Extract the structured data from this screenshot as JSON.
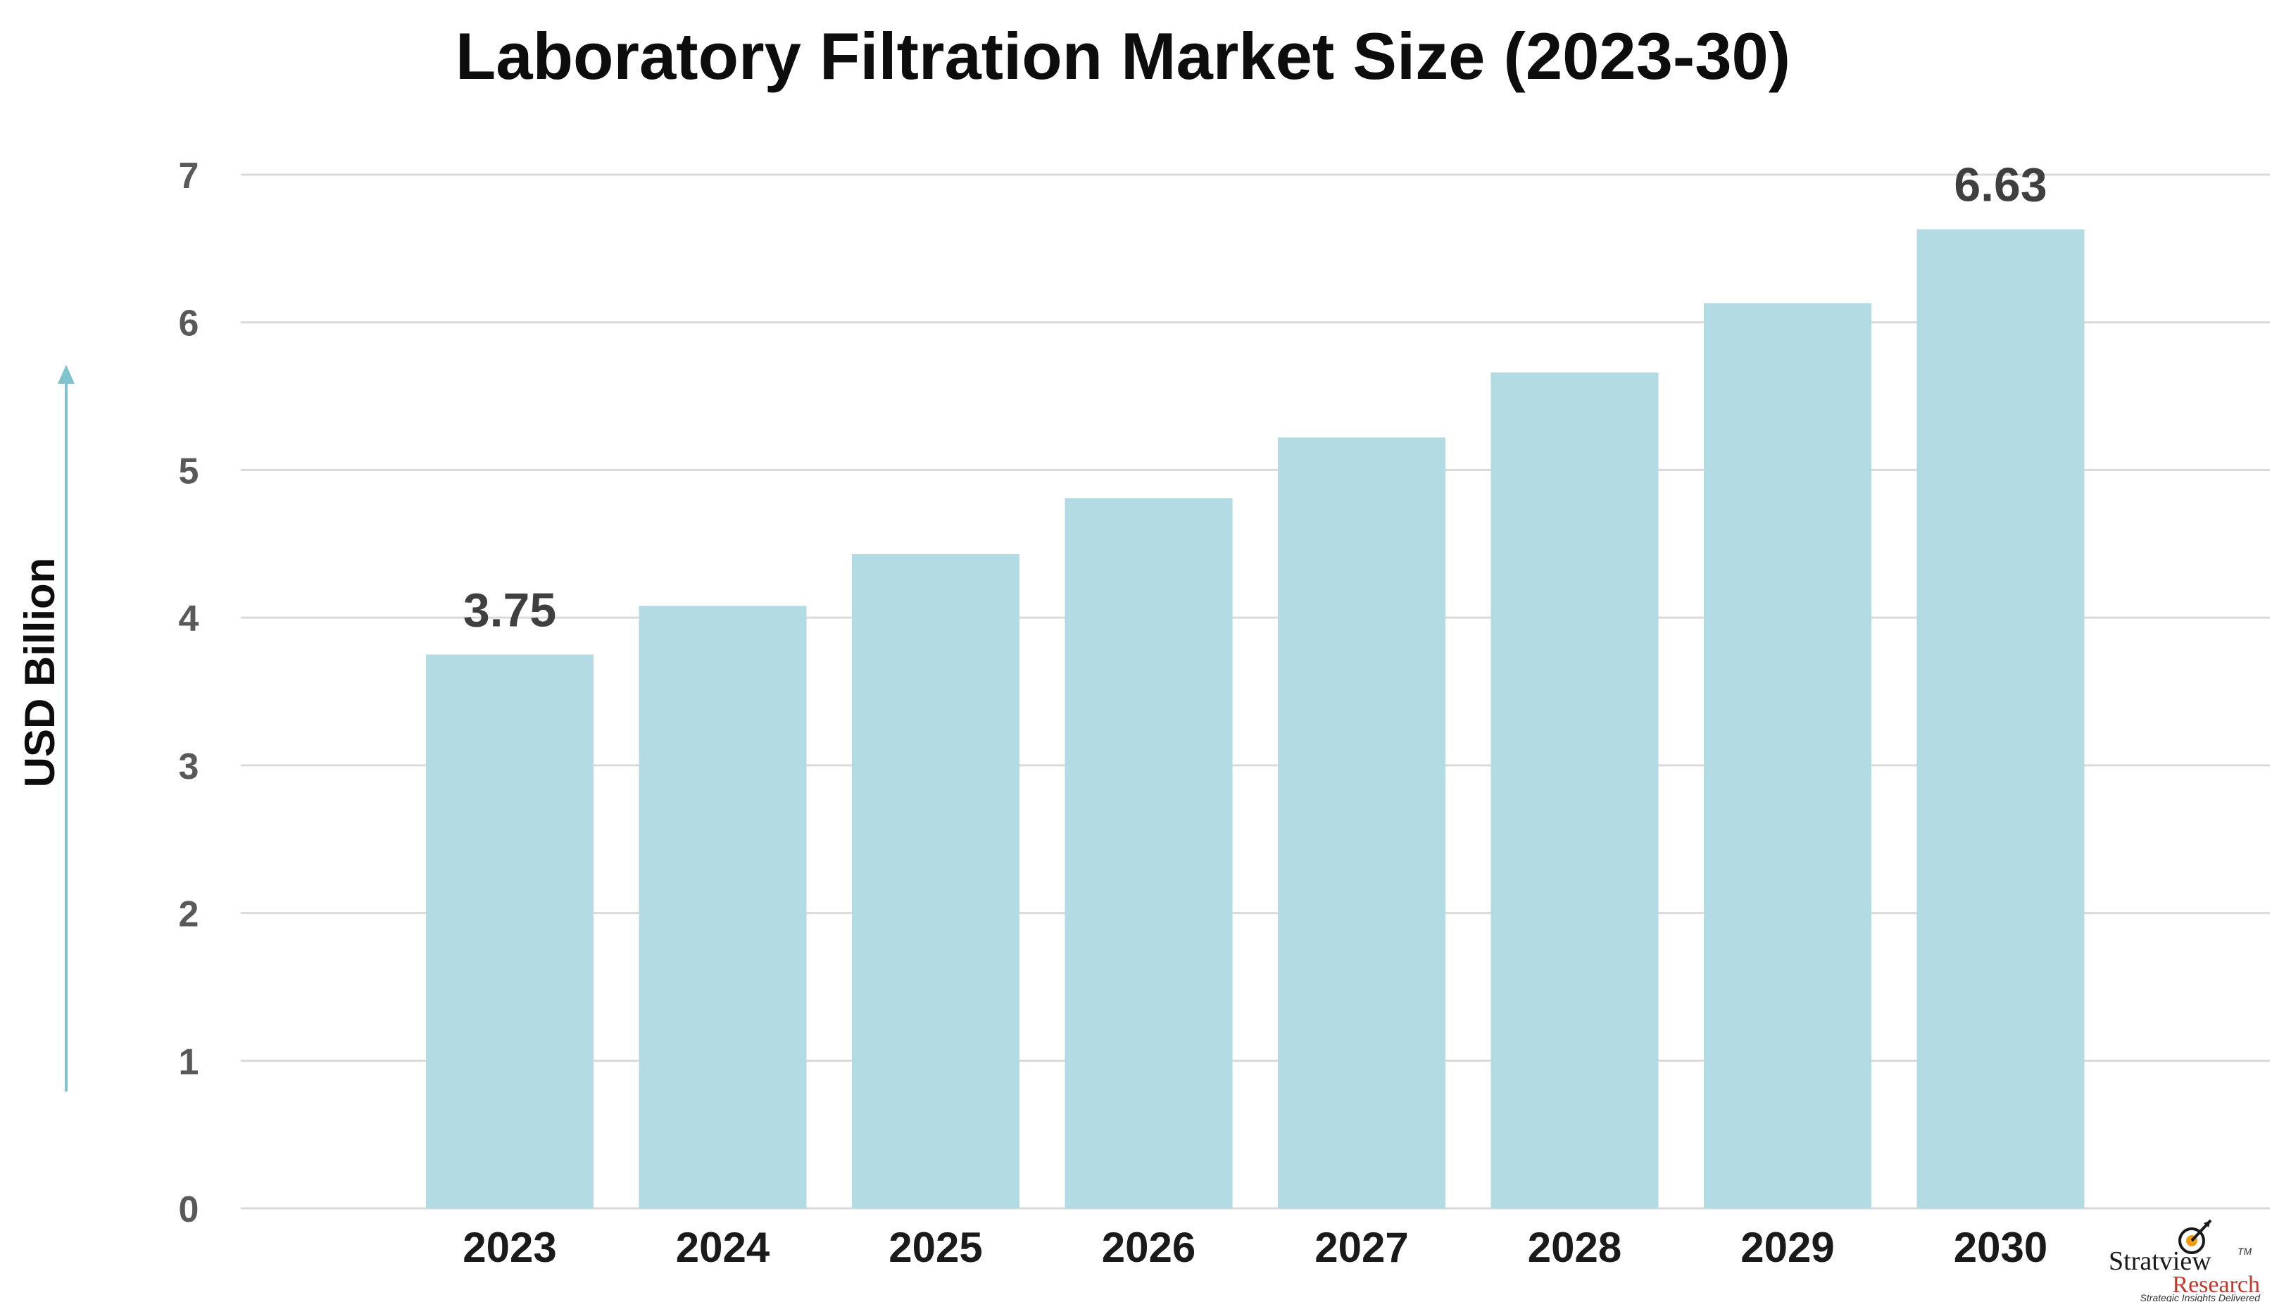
{
  "chart_data": {
    "type": "bar",
    "title": "Laboratory Filtration Market Size (2023-30)",
    "ylabel": "USD Billion",
    "xlabel": "",
    "categories": [
      "2023",
      "2024",
      "2025",
      "2026",
      "2027",
      "2028",
      "2029",
      "2030"
    ],
    "values": [
      3.75,
      4.08,
      4.43,
      4.81,
      5.22,
      5.66,
      6.13,
      6.63
    ],
    "data_labels": {
      "0": "3.75",
      "7": "6.63"
    },
    "ylim": [
      0,
      7
    ],
    "yticks": [
      "0",
      "1",
      "2",
      "3",
      "4",
      "5",
      "6",
      "7"
    ],
    "grid": true,
    "legend": "none",
    "colors": {
      "bar": "#b3dbe3",
      "grid": "#d9d9d9",
      "arrow": "#7fc3cc"
    }
  },
  "logo": {
    "name": "Stratview",
    "trademark": "TM",
    "sub": "Research",
    "tagline": "Strategic Insights Delivered"
  }
}
